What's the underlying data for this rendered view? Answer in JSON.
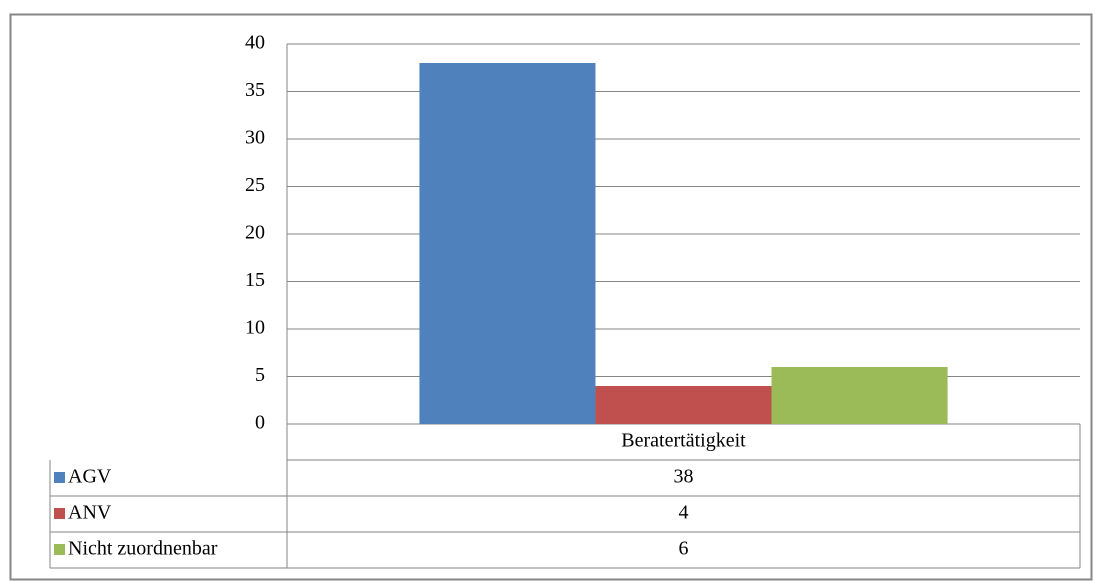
{
  "chart_data": {
    "type": "bar",
    "categories": [
      "Beratertätigkeit"
    ],
    "series": [
      {
        "name": "AGV",
        "color": "#4f81bd",
        "values": [
          38
        ]
      },
      {
        "name": "ANV",
        "color": "#c0504d",
        "values": [
          4
        ]
      },
      {
        "name": "Nicht zuordnenbar",
        "color": "#9bbb59",
        "values": [
          6
        ]
      }
    ],
    "ylim": [
      0,
      40
    ],
    "yticks": [
      0,
      5,
      10,
      15,
      20,
      25,
      30,
      35,
      40
    ],
    "grid": true,
    "data_table": true
  }
}
